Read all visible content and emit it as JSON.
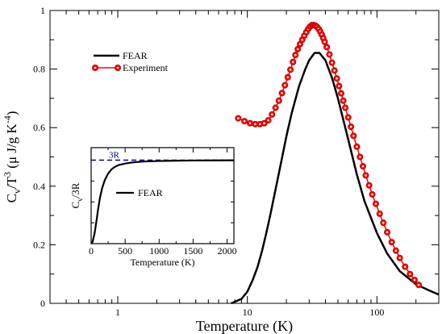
{
  "chart_data": [
    {
      "type": "line",
      "xlabel": "Temperature (K)",
      "ylabel": "C_v/T^3 (μ J/g K^-4)",
      "x_scale": "log",
      "xlim": [
        0.3,
        300
      ],
      "ylim": [
        0,
        1
      ],
      "x_ticks": [
        1,
        10,
        100
      ],
      "x_tick_labels": [
        "1",
        "10",
        "100"
      ],
      "y_ticks": [
        0,
        0.2,
        0.4,
        0.6,
        0.8,
        1
      ],
      "y_tick_labels": [
        "0",
        "0.2",
        "0.4",
        "0.6",
        "0.8",
        "1"
      ],
      "legend_position": "top-left",
      "series": [
        {
          "name": "FEAR",
          "color": "#000000",
          "style": "solid",
          "x": [
            7.5,
            9,
            10,
            11,
            12,
            13,
            14,
            15,
            16,
            18,
            20,
            22,
            25,
            28,
            30,
            33,
            36,
            40,
            45,
            50,
            60,
            70,
            80,
            100,
            120,
            150,
            200,
            250,
            300
          ],
          "y": [
            0.0,
            0.015,
            0.04,
            0.08,
            0.125,
            0.18,
            0.24,
            0.3,
            0.36,
            0.47,
            0.57,
            0.65,
            0.74,
            0.8,
            0.83,
            0.855,
            0.855,
            0.83,
            0.77,
            0.7,
            0.56,
            0.44,
            0.35,
            0.24,
            0.17,
            0.11,
            0.065,
            0.045,
            0.03
          ]
        },
        {
          "name": "Experiment",
          "color": "#ff0000",
          "style": "line-with-circle-markers",
          "x": [
            8.5,
            9.5,
            10.5,
            11.5,
            12.5,
            13.5,
            14.5,
            15.5,
            16.5,
            17.5,
            18.5,
            19.5,
            20.5,
            21.5,
            22.5,
            23.5,
            24.5,
            25.5,
            26.5,
            27.5,
            28.5,
            29.5,
            30.5,
            31.5,
            32.5,
            33.5,
            34.5,
            35.5,
            36.5,
            37.5,
            38.5,
            39.5,
            41,
            43,
            45,
            47,
            49,
            51,
            53,
            55,
            57,
            60,
            63,
            66,
            70,
            74,
            78,
            82,
            87,
            92,
            98,
            105,
            112,
            120,
            130,
            140,
            150,
            165,
            180,
            195,
            210
          ],
          "y": [
            0.632,
            0.622,
            0.615,
            0.612,
            0.612,
            0.615,
            0.625,
            0.645,
            0.668,
            0.692,
            0.718,
            0.745,
            0.772,
            0.798,
            0.824,
            0.848,
            0.868,
            0.885,
            0.9,
            0.914,
            0.926,
            0.937,
            0.945,
            0.95,
            0.95,
            0.948,
            0.944,
            0.937,
            0.928,
            0.918,
            0.906,
            0.893,
            0.875,
            0.85,
            0.822,
            0.795,
            0.768,
            0.742,
            0.717,
            0.692,
            0.668,
            0.635,
            0.603,
            0.572,
            0.535,
            0.5,
            0.468,
            0.437,
            0.403,
            0.372,
            0.34,
            0.306,
            0.275,
            0.243,
            0.209,
            0.18,
            0.155,
            0.125,
            0.1,
            0.08,
            0.063
          ]
        }
      ]
    },
    {
      "type": "line",
      "xlabel": "Temperature (K)",
      "ylabel": "C_v/3R",
      "x_scale": "linear",
      "xlim": [
        0,
        2100
      ],
      "ylim": [
        0,
        1.15
      ],
      "x_ticks": [
        0,
        500,
        1000,
        1500,
        2000
      ],
      "x_tick_labels": [
        "0",
        "500",
        "1000",
        "1500",
        "2000"
      ],
      "legend_position": "center-right",
      "annotations": [
        {
          "text": "3R",
          "color": "#00008b"
        }
      ],
      "series": [
        {
          "name": "FEAR",
          "color": "#000000",
          "style": "solid",
          "x": [
            0,
            20,
            50,
            80,
            100,
            130,
            160,
            200,
            250,
            300,
            350,
            400,
            500,
            600,
            700,
            800,
            1000,
            1200,
            1500,
            2000,
            2100
          ],
          "y": [
            0,
            0.02,
            0.12,
            0.28,
            0.4,
            0.55,
            0.66,
            0.76,
            0.84,
            0.89,
            0.92,
            0.94,
            0.96,
            0.972,
            0.98,
            0.985,
            0.99,
            0.993,
            0.996,
            0.998,
            0.998
          ]
        },
        {
          "name": "3R",
          "color": "#00008b",
          "style": "dashed",
          "x": [
            0,
            2100
          ],
          "y": [
            1,
            1
          ]
        }
      ]
    }
  ]
}
